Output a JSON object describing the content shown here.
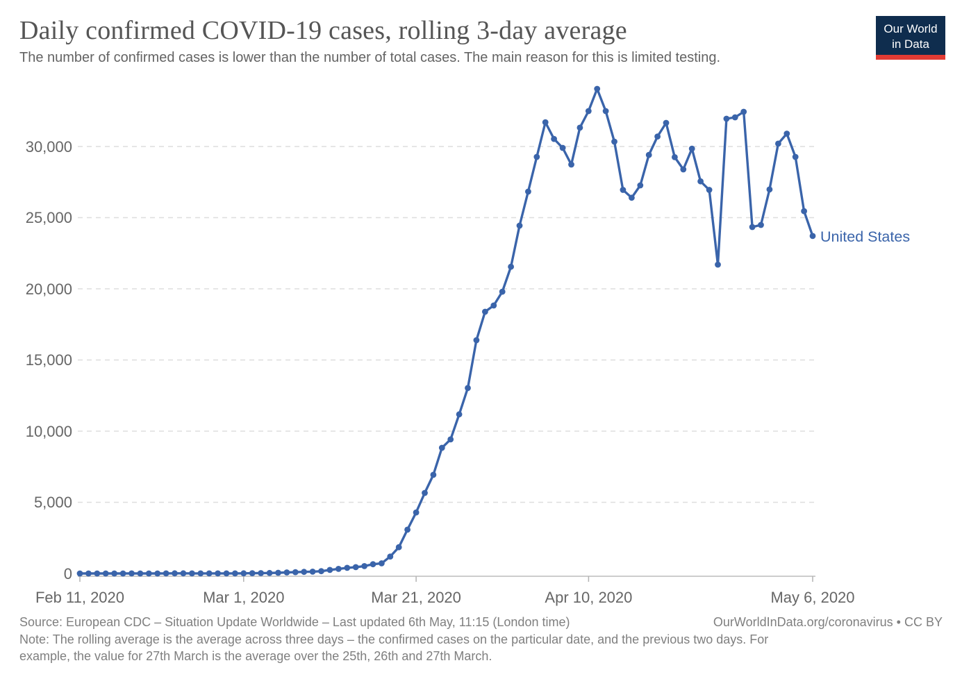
{
  "header": {
    "title": "Daily confirmed COVID-19 cases, rolling 3-day average",
    "subtitle": "The number of confirmed cases is lower than the number of total cases. The main reason for this is limited testing.",
    "logo": {
      "line1": "Our World",
      "line2": "in Data",
      "bg_color": "#0f2d4e",
      "stripe_color": "#e23b34"
    }
  },
  "chart_data": {
    "type": "line",
    "title": "Daily confirmed COVID-19 cases, rolling 3-day average",
    "xlabel": "",
    "ylabel": "",
    "grid": "horizontal-dashed",
    "legend_position": "end-of-line",
    "ylim": [
      0,
      34500
    ],
    "x_axis": {
      "tick_labels": [
        "Feb 11, 2020",
        "Mar 1, 2020",
        "Mar 21, 2020",
        "Apr 10, 2020",
        "May 6, 2020"
      ],
      "tick_day_index": [
        0,
        19,
        39,
        59,
        85
      ]
    },
    "y_axis": {
      "ticks": [
        {
          "value": 0,
          "label": "0"
        },
        {
          "value": 5000,
          "label": "5,000"
        },
        {
          "value": 10000,
          "label": "10,000"
        },
        {
          "value": 15000,
          "label": "15,000"
        },
        {
          "value": 20000,
          "label": "20,000"
        },
        {
          "value": 25000,
          "label": "25,000"
        },
        {
          "value": 30000,
          "label": "30,000"
        }
      ]
    },
    "series": [
      {
        "name": "United States",
        "color": "#3a64aa",
        "dates": [
          "2020-02-11",
          "2020-02-12",
          "2020-02-13",
          "2020-02-14",
          "2020-02-15",
          "2020-02-16",
          "2020-02-17",
          "2020-02-18",
          "2020-02-19",
          "2020-02-20",
          "2020-02-21",
          "2020-02-22",
          "2020-02-23",
          "2020-02-24",
          "2020-02-25",
          "2020-02-26",
          "2020-02-27",
          "2020-02-28",
          "2020-02-29",
          "2020-03-01",
          "2020-03-02",
          "2020-03-03",
          "2020-03-04",
          "2020-03-05",
          "2020-03-06",
          "2020-03-07",
          "2020-03-08",
          "2020-03-09",
          "2020-03-10",
          "2020-03-11",
          "2020-03-12",
          "2020-03-13",
          "2020-03-14",
          "2020-03-15",
          "2020-03-16",
          "2020-03-17",
          "2020-03-18",
          "2020-03-19",
          "2020-03-20",
          "2020-03-21",
          "2020-03-22",
          "2020-03-23",
          "2020-03-24",
          "2020-03-25",
          "2020-03-26",
          "2020-03-27",
          "2020-03-28",
          "2020-03-29",
          "2020-03-30",
          "2020-03-31",
          "2020-04-01",
          "2020-04-02",
          "2020-04-03",
          "2020-04-04",
          "2020-04-05",
          "2020-04-06",
          "2020-04-07",
          "2020-04-08",
          "2020-04-09",
          "2020-04-10",
          "2020-04-11",
          "2020-04-12",
          "2020-04-13",
          "2020-04-14",
          "2020-04-15",
          "2020-04-16",
          "2020-04-17",
          "2020-04-18",
          "2020-04-19",
          "2020-04-20",
          "2020-04-21",
          "2020-04-22",
          "2020-04-23",
          "2020-04-24",
          "2020-04-25",
          "2020-04-26",
          "2020-04-27",
          "2020-04-28",
          "2020-04-29",
          "2020-04-30",
          "2020-05-01",
          "2020-05-02",
          "2020-05-03",
          "2020-05-04",
          "2020-05-05",
          "2020-05-06"
        ],
        "values": [
          0,
          1,
          1,
          2,
          2,
          2,
          3,
          2,
          1,
          1,
          7,
          9,
          9,
          4,
          4,
          5,
          6,
          5,
          7,
          12,
          18,
          25,
          35,
          50,
          75,
          95,
          110,
          125,
          160,
          250,
          320,
          395,
          445,
          515,
          650,
          710,
          1190,
          1845,
          3080,
          4290,
          5660,
          6930,
          8830,
          9420,
          11180,
          13030,
          16390,
          18390,
          18830,
          19800,
          21550,
          24440,
          26830,
          29270,
          31700,
          30530,
          29900,
          28730,
          31320,
          32490,
          34050,
          32490,
          30340,
          26950,
          26400,
          27270,
          29410,
          30700,
          31660,
          29250,
          28390,
          29850,
          27550,
          26950,
          21700,
          31950,
          32050,
          32440,
          24340,
          24490,
          26980,
          30200,
          30900,
          29270,
          25460,
          23710
        ]
      }
    ]
  },
  "footer": {
    "source_left": "Source: European CDC – Situation Update Worldwide – Last updated 6th May, 11:15 (London time)",
    "source_right": "OurWorldInData.org/coronavirus • CC BY",
    "note_lines": [
      "Note: The rolling average is the average across three days – the confirmed cases on the particular date, and the previous two days. For",
      "example, the value for 27th March is the average over the 25th, 26th and 27th March."
    ]
  }
}
